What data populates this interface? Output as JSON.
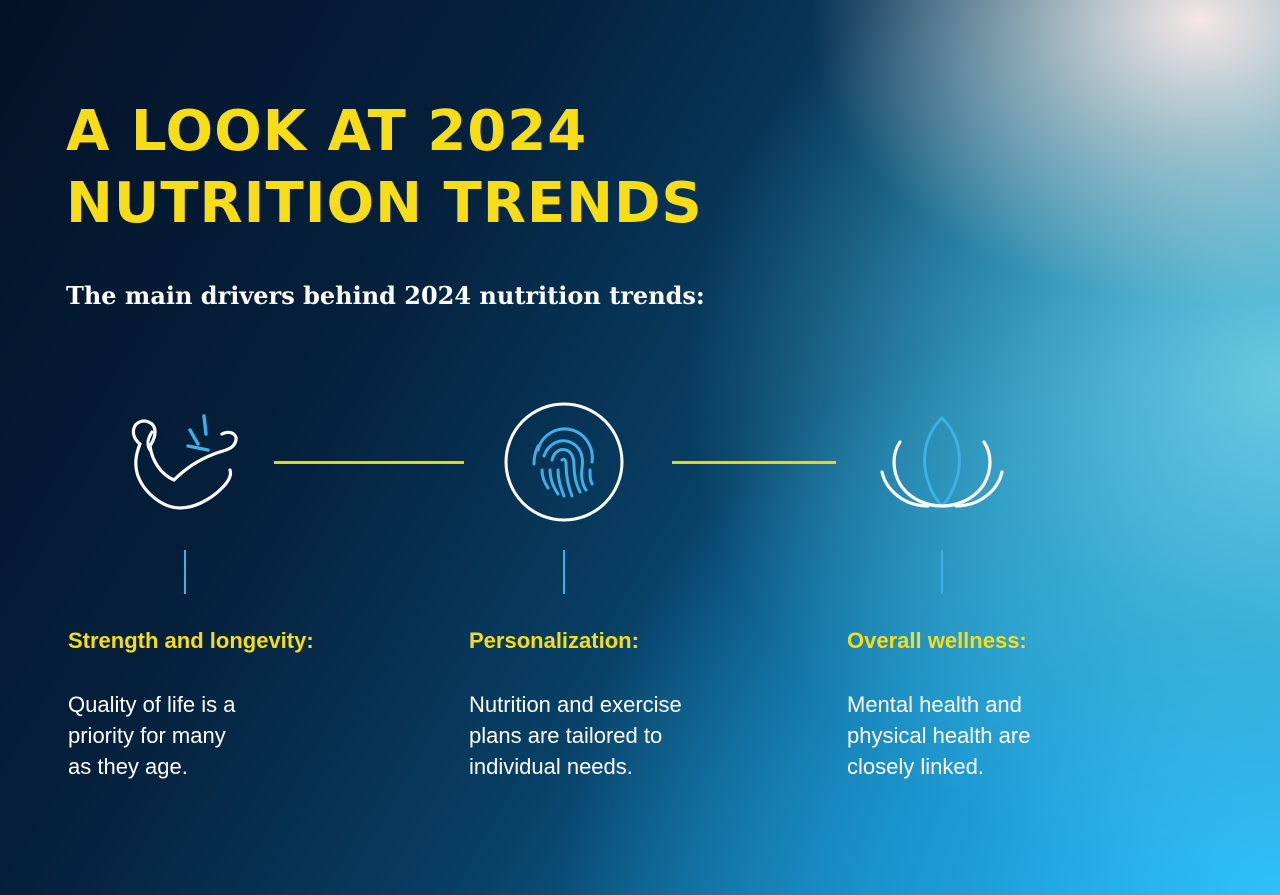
{
  "header": {
    "title_line1": "A LOOK AT 2024",
    "title_line2": "NUTRITION TRENDS",
    "subtitle": "The main drivers behind 2024 nutrition trends:"
  },
  "colors": {
    "accent_yellow": "#f7dd17",
    "accent_blue": "#3fb0e6",
    "text_white": "#ffffff"
  },
  "drivers": [
    {
      "icon": "flexed-arm-icon",
      "title": "Strength and longevity:",
      "lines": [
        "Quality of life is a",
        "priority for many",
        "as they age."
      ]
    },
    {
      "icon": "fingerprint-icon",
      "title": "Personalization:",
      "lines": [
        "Nutrition and exercise",
        "plans are tailored to",
        "individual needs."
      ]
    },
    {
      "icon": "lotus-icon",
      "title": "Overall wellness:",
      "lines": [
        "Mental health and",
        "physical health are",
        "closely linked."
      ]
    }
  ]
}
